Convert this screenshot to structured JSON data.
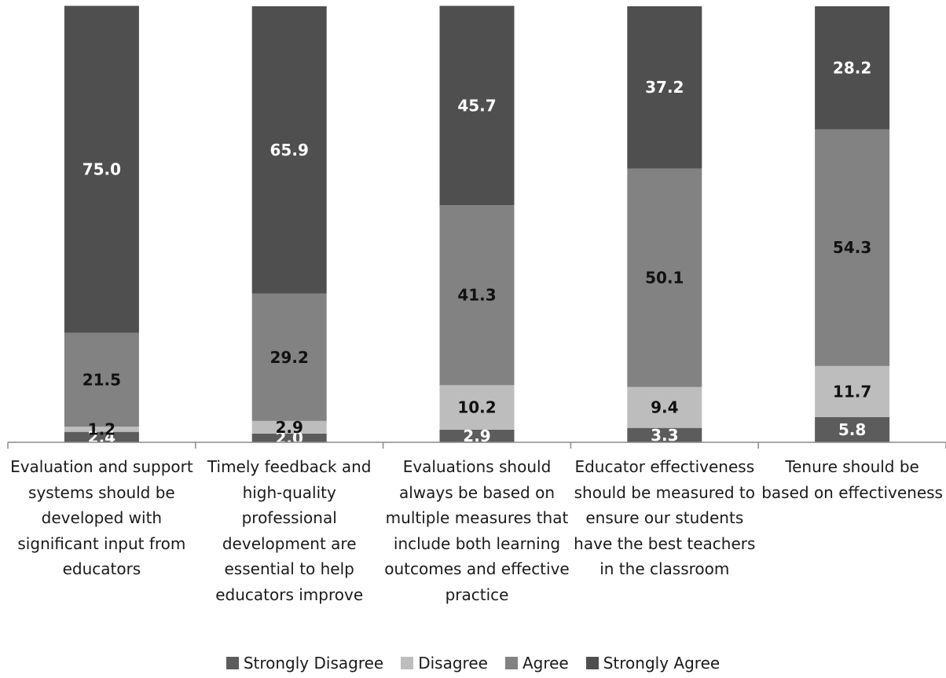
{
  "chart_data": {
    "type": "bar",
    "stacked": true,
    "percent_stacked": true,
    "categories": [
      "Evaluation and support systems should be developed with significant input from educators",
      "Timely feedback and high-quality professional development are essential to help educators improve",
      "Evaluations should always be based on multiple measures that include both learning outcomes and effective practice",
      "Educator effectiveness should be measured to ensure our students have the best teachers in the classroom",
      "Tenure should be based on effectiveness"
    ],
    "series": [
      {
        "name": "Strongly Disagree",
        "color": "#5c5c5c",
        "values": [
          2.4,
          2.0,
          2.9,
          3.3,
          5.8
        ]
      },
      {
        "name": "Disagree",
        "color": "#bdbdbd",
        "values": [
          1.2,
          2.9,
          10.2,
          9.4,
          11.7
        ]
      },
      {
        "name": "Agree",
        "color": "#828282",
        "values": [
          21.5,
          29.2,
          41.3,
          50.1,
          54.3
        ]
      },
      {
        "name": "Strongly Agree",
        "color": "#4f4f4f",
        "values": [
          75.0,
          65.9,
          45.7,
          37.2,
          28.2
        ]
      }
    ],
    "title": "",
    "xlabel": "",
    "ylabel": "",
    "ylim": [
      0,
      100
    ],
    "grid": false,
    "legend_position": "bottom"
  }
}
